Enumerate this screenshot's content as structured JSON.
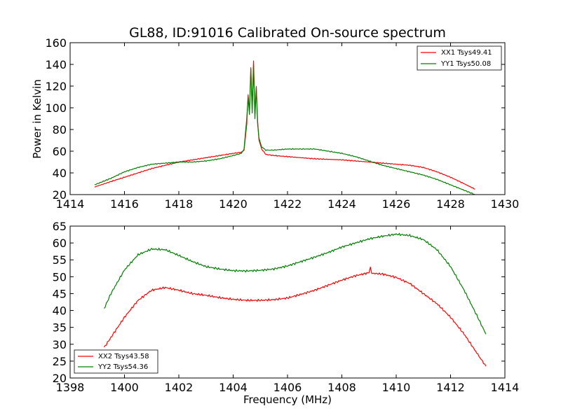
{
  "colors": {
    "xx": "#ff0000",
    "yy": "#008000",
    "axes": "#000000",
    "background": "#ffffff"
  },
  "chart_data": [
    {
      "type": "line",
      "title": "GL88, ID:91016 Calibrated On-source spectrum",
      "xlabel": "",
      "ylabel": "Power in Kelvin",
      "xlim": [
        1414,
        1430
      ],
      "ylim": [
        20,
        160
      ],
      "xticks": [
        1414,
        1416,
        1418,
        1420,
        1422,
        1424,
        1426,
        1428,
        1430
      ],
      "yticks": [
        20,
        40,
        60,
        80,
        100,
        120,
        140,
        160
      ],
      "grid": false,
      "legend_position": "top-right",
      "series": [
        {
          "name": "XX1 Tsys49.41",
          "color": "#ff0000",
          "points": [
            [
              1414.9,
              27
            ],
            [
              1415.5,
              32
            ],
            [
              1416,
              36
            ],
            [
              1416.5,
              40
            ],
            [
              1417,
              44
            ],
            [
              1417.5,
              47
            ],
            [
              1418,
              50
            ],
            [
              1418.5,
              52
            ],
            [
              1419,
              54
            ],
            [
              1419.5,
              56
            ],
            [
              1420,
              58
            ],
            [
              1420.3,
              59
            ],
            [
              1420.4,
              61
            ],
            [
              1420.5,
              85
            ],
            [
              1420.55,
              112
            ],
            [
              1420.6,
              96
            ],
            [
              1420.65,
              137
            ],
            [
              1420.7,
              100
            ],
            [
              1420.75,
              143
            ],
            [
              1420.8,
              95
            ],
            [
              1420.85,
              120
            ],
            [
              1420.9,
              88
            ],
            [
              1420.95,
              70
            ],
            [
              1421.05,
              62
            ],
            [
              1421.2,
              57
            ],
            [
              1421.5,
              56
            ],
            [
              1422,
              55
            ],
            [
              1423,
              53
            ],
            [
              1424,
              52
            ],
            [
              1425,
              50
            ],
            [
              1426,
              48
            ],
            [
              1426.5,
              47
            ],
            [
              1427,
              45
            ],
            [
              1427.5,
              41
            ],
            [
              1428,
              36
            ],
            [
              1428.5,
              30
            ],
            [
              1428.9,
              25
            ]
          ]
        },
        {
          "name": "YY1 Tsys50.08",
          "color": "#008000",
          "points": [
            [
              1414.9,
              29
            ],
            [
              1415.5,
              35
            ],
            [
              1416,
              41
            ],
            [
              1416.5,
              45
            ],
            [
              1417,
              48
            ],
            [
              1417.5,
              49
            ],
            [
              1418,
              50
            ],
            [
              1418.5,
              50
            ],
            [
              1419,
              51
            ],
            [
              1419.5,
              53
            ],
            [
              1420,
              56
            ],
            [
              1420.3,
              58
            ],
            [
              1420.4,
              62
            ],
            [
              1420.5,
              90
            ],
            [
              1420.55,
              110
            ],
            [
              1420.6,
              94
            ],
            [
              1420.65,
              135
            ],
            [
              1420.7,
              95
            ],
            [
              1420.75,
              140
            ],
            [
              1420.8,
              90
            ],
            [
              1420.85,
              118
            ],
            [
              1420.9,
              85
            ],
            [
              1420.95,
              72
            ],
            [
              1421.05,
              64
            ],
            [
              1421.2,
              61
            ],
            [
              1421.5,
              61
            ],
            [
              1422,
              62
            ],
            [
              1422.5,
              62
            ],
            [
              1423,
              62
            ],
            [
              1423.5,
              60
            ],
            [
              1424,
              58
            ],
            [
              1424.5,
              55
            ],
            [
              1425,
              51
            ],
            [
              1425.5,
              47
            ],
            [
              1426,
              44
            ],
            [
              1426.5,
              41
            ],
            [
              1427,
              38
            ],
            [
              1427.5,
              34
            ],
            [
              1428,
              29
            ],
            [
              1428.5,
              24
            ],
            [
              1428.9,
              20
            ]
          ]
        }
      ]
    },
    {
      "type": "line",
      "title": "",
      "xlabel": "Frequency (MHz)",
      "ylabel": "",
      "xlim": [
        1398,
        1414
      ],
      "ylim": [
        20,
        65
      ],
      "xticks": [
        1398,
        1400,
        1402,
        1404,
        1406,
        1408,
        1410,
        1412,
        1414
      ],
      "yticks": [
        20,
        25,
        30,
        35,
        40,
        45,
        50,
        55,
        60,
        65
      ],
      "grid": false,
      "legend_position": "bottom-left",
      "series": [
        {
          "name": "XX2 Tsys43.58",
          "color": "#ff0000",
          "points": [
            [
              1399.25,
              29
            ],
            [
              1399.5,
              32
            ],
            [
              1400,
              38
            ],
            [
              1400.5,
              43
            ],
            [
              1401,
              46
            ],
            [
              1401.5,
              46.8
            ],
            [
              1402,
              46
            ],
            [
              1402.5,
              45
            ],
            [
              1403,
              44.5
            ],
            [
              1403.5,
              43.8
            ],
            [
              1404,
              43.3
            ],
            [
              1404.5,
              43
            ],
            [
              1405,
              43
            ],
            [
              1405.5,
              43.2
            ],
            [
              1406,
              43.7
            ],
            [
              1406.5,
              44.8
            ],
            [
              1407,
              46
            ],
            [
              1407.5,
              47.5
            ],
            [
              1408,
              49
            ],
            [
              1408.5,
              50.3
            ],
            [
              1409,
              51.2
            ],
            [
              1409.05,
              52.5
            ],
            [
              1409.1,
              51
            ],
            [
              1409.5,
              50.8
            ],
            [
              1410,
              49.8
            ],
            [
              1410.5,
              48
            ],
            [
              1411,
              45
            ],
            [
              1411.5,
              42
            ],
            [
              1412,
              38
            ],
            [
              1412.5,
              33
            ],
            [
              1413,
              27
            ],
            [
              1413.3,
              23.5
            ]
          ]
        },
        {
          "name": "YY2 Tsys54.36",
          "color": "#008000",
          "points": [
            [
              1399.25,
              40.5
            ],
            [
              1399.5,
              45
            ],
            [
              1400,
              52
            ],
            [
              1400.5,
              56.5
            ],
            [
              1401,
              58.2
            ],
            [
              1401.5,
              58
            ],
            [
              1402,
              56.3
            ],
            [
              1402.5,
              54.5
            ],
            [
              1403,
              53
            ],
            [
              1403.5,
              52.3
            ],
            [
              1404,
              51.8
            ],
            [
              1404.5,
              51.7
            ],
            [
              1405,
              51.9
            ],
            [
              1405.5,
              52.3
            ],
            [
              1406,
              53.2
            ],
            [
              1406.5,
              54.5
            ],
            [
              1407,
              55.8
            ],
            [
              1407.5,
              57.2
            ],
            [
              1408,
              58.8
            ],
            [
              1408.5,
              60
            ],
            [
              1409,
              61.2
            ],
            [
              1409.5,
              62
            ],
            [
              1410,
              62.6
            ],
            [
              1410.5,
              62.2
            ],
            [
              1411,
              61
            ],
            [
              1411.5,
              58
            ],
            [
              1412,
              53
            ],
            [
              1412.5,
              46
            ],
            [
              1413,
              38
            ],
            [
              1413.3,
              33
            ]
          ]
        }
      ]
    }
  ]
}
